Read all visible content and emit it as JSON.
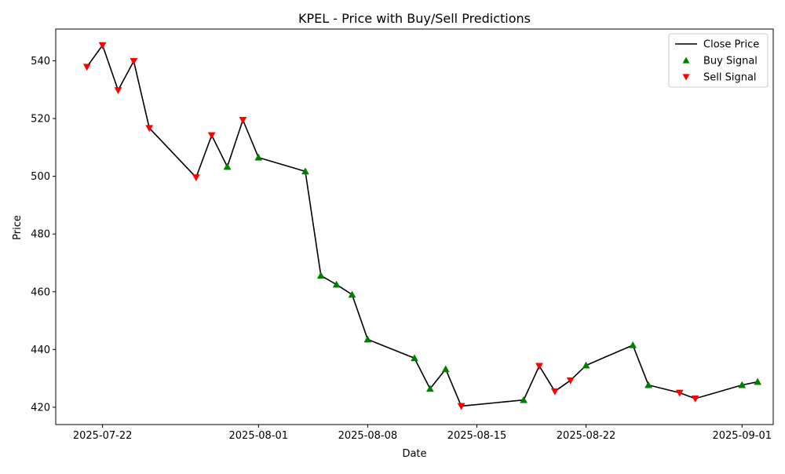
{
  "chart_data": {
    "type": "line",
    "title": "KPEL - Price with Buy/Sell Predictions",
    "xlabel": "Date",
    "ylabel": "Price",
    "x_ticks": [
      "2025-07-22",
      "2025-08-01",
      "2025-08-08",
      "2025-08-15",
      "2025-08-22",
      "2025-09-01"
    ],
    "y_ticks": [
      420,
      440,
      460,
      480,
      500,
      520,
      540
    ],
    "xlim": [
      "2025-07-19",
      "2025-09-03"
    ],
    "ylim": [
      414,
      551
    ],
    "grid": false,
    "legend": {
      "location": "top-right",
      "entries": [
        {
          "label": "Close Price",
          "marker": "line",
          "color": "#000000"
        },
        {
          "label": "Buy Signal",
          "marker": "triangle-up",
          "color": "#008000"
        },
        {
          "label": "Sell Signal",
          "marker": "triangle-down",
          "color": "#ff0000"
        }
      ]
    },
    "series": [
      {
        "name": "Close Price",
        "kind": "line",
        "color": "#000000",
        "points": [
          {
            "x": "2025-07-21",
            "y": 537.9
          },
          {
            "x": "2025-07-22",
            "y": 545.4
          },
          {
            "x": "2025-07-23",
            "y": 529.8
          },
          {
            "x": "2025-07-24",
            "y": 539.9
          },
          {
            "x": "2025-07-25",
            "y": 516.7
          },
          {
            "x": "2025-07-28",
            "y": 499.6
          },
          {
            "x": "2025-07-29",
            "y": 514.2
          },
          {
            "x": "2025-07-30",
            "y": 503.3
          },
          {
            "x": "2025-07-31",
            "y": 519.5
          },
          {
            "x": "2025-08-01",
            "y": 506.5
          },
          {
            "x": "2025-08-04",
            "y": 501.7
          },
          {
            "x": "2025-08-05",
            "y": 465.6
          },
          {
            "x": "2025-08-06",
            "y": 462.5
          },
          {
            "x": "2025-08-07",
            "y": 459.0
          },
          {
            "x": "2025-08-08",
            "y": 443.5
          },
          {
            "x": "2025-08-11",
            "y": 437.0
          },
          {
            "x": "2025-08-12",
            "y": 426.4
          },
          {
            "x": "2025-08-13",
            "y": 433.2
          },
          {
            "x": "2025-08-14",
            "y": 420.4
          },
          {
            "x": "2025-08-18",
            "y": 422.5
          },
          {
            "x": "2025-08-19",
            "y": 434.3
          },
          {
            "x": "2025-08-20",
            "y": 425.5
          },
          {
            "x": "2025-08-21",
            "y": 429.3
          },
          {
            "x": "2025-08-22",
            "y": 434.5
          },
          {
            "x": "2025-08-25",
            "y": 441.5
          },
          {
            "x": "2025-08-26",
            "y": 427.7
          },
          {
            "x": "2025-08-28",
            "y": 425.0
          },
          {
            "x": "2025-08-29",
            "y": 423.0
          },
          {
            "x": "2025-09-01",
            "y": 427.7
          },
          {
            "x": "2025-09-02",
            "y": 428.8
          }
        ]
      },
      {
        "name": "Buy Signal",
        "kind": "scatter",
        "marker": "triangle-up",
        "color": "#008000",
        "points": [
          {
            "x": "2025-07-30",
            "y": 503.3
          },
          {
            "x": "2025-08-01",
            "y": 506.5
          },
          {
            "x": "2025-08-04",
            "y": 501.7
          },
          {
            "x": "2025-08-05",
            "y": 465.6
          },
          {
            "x": "2025-08-06",
            "y": 462.5
          },
          {
            "x": "2025-08-07",
            "y": 459.0
          },
          {
            "x": "2025-08-08",
            "y": 443.5
          },
          {
            "x": "2025-08-11",
            "y": 437.0
          },
          {
            "x": "2025-08-12",
            "y": 426.4
          },
          {
            "x": "2025-08-13",
            "y": 433.2
          },
          {
            "x": "2025-08-18",
            "y": 422.5
          },
          {
            "x": "2025-08-22",
            "y": 434.5
          },
          {
            "x": "2025-08-25",
            "y": 441.5
          },
          {
            "x": "2025-08-26",
            "y": 427.7
          },
          {
            "x": "2025-09-01",
            "y": 427.7
          },
          {
            "x": "2025-09-02",
            "y": 428.8
          }
        ]
      },
      {
        "name": "Sell Signal",
        "kind": "scatter",
        "marker": "triangle-down",
        "color": "#ff0000",
        "points": [
          {
            "x": "2025-07-21",
            "y": 537.9
          },
          {
            "x": "2025-07-22",
            "y": 545.4
          },
          {
            "x": "2025-07-23",
            "y": 529.8
          },
          {
            "x": "2025-07-24",
            "y": 539.9
          },
          {
            "x": "2025-07-25",
            "y": 516.7
          },
          {
            "x": "2025-07-28",
            "y": 499.6
          },
          {
            "x": "2025-07-29",
            "y": 514.2
          },
          {
            "x": "2025-07-31",
            "y": 519.5
          },
          {
            "x": "2025-08-14",
            "y": 420.4
          },
          {
            "x": "2025-08-19",
            "y": 434.3
          },
          {
            "x": "2025-08-20",
            "y": 425.5
          },
          {
            "x": "2025-08-21",
            "y": 429.3
          },
          {
            "x": "2025-08-28",
            "y": 425.0
          },
          {
            "x": "2025-08-29",
            "y": 423.0
          }
        ]
      }
    ]
  }
}
